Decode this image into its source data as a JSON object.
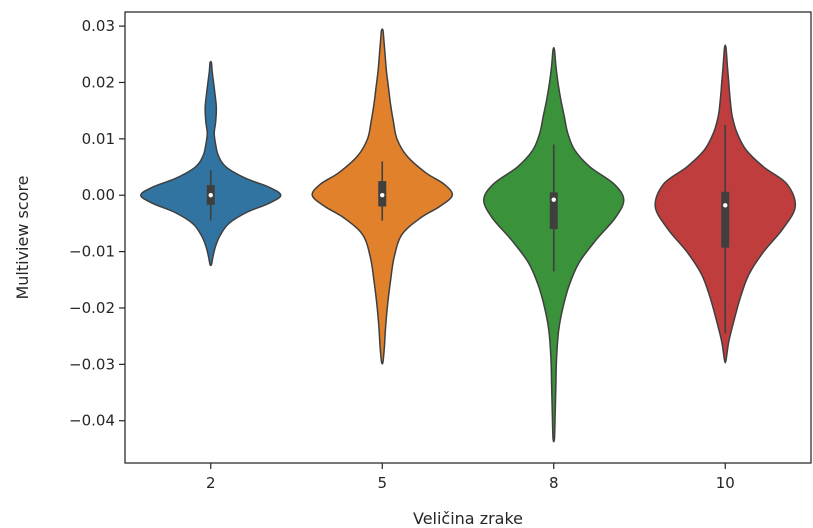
{
  "chart_data": {
    "type": "violin",
    "xlabel": "Veličina zrake",
    "ylabel": "Multiview score",
    "categories": [
      "2",
      "5",
      "8",
      "10"
    ],
    "colors": [
      "#3274a1",
      "#e1812c",
      "#3a923a",
      "#c03d3e"
    ],
    "ylim": [
      -0.0475,
      0.0325
    ],
    "yticks": [
      0.03,
      0.02,
      0.01,
      0.0,
      -0.01,
      -0.02,
      -0.03,
      -0.04
    ],
    "ytick_labels": [
      "0.03",
      "0.02",
      "0.01",
      "0.00",
      "−0.01",
      "−0.02",
      "−0.03",
      "−0.04"
    ],
    "grid": false,
    "violins": [
      {
        "category": "2",
        "min": -0.0123,
        "max": 0.0235,
        "q1": -0.0017,
        "median": 0.0,
        "q3": 0.0018,
        "whisker_low": -0.0045,
        "whisker_high": 0.0045,
        "profile": [
          [
            -0.0123,
            0.01
          ],
          [
            -0.011,
            0.03
          ],
          [
            -0.009,
            0.07
          ],
          [
            -0.007,
            0.14
          ],
          [
            -0.005,
            0.26
          ],
          [
            -0.003,
            0.52
          ],
          [
            -0.0015,
            0.82
          ],
          [
            0.0,
            1.0
          ],
          [
            0.0015,
            0.82
          ],
          [
            0.003,
            0.5
          ],
          [
            0.005,
            0.22
          ],
          [
            0.007,
            0.11
          ],
          [
            0.009,
            0.07
          ],
          [
            0.011,
            0.05
          ],
          [
            0.013,
            0.07
          ],
          [
            0.0155,
            0.08
          ],
          [
            0.018,
            0.06
          ],
          [
            0.02,
            0.04
          ],
          [
            0.022,
            0.02
          ],
          [
            0.0235,
            0.01
          ]
        ]
      },
      {
        "category": "5",
        "min": -0.0296,
        "max": 0.0293,
        "q1": -0.002,
        "median": 0.0,
        "q3": 0.0025,
        "whisker_low": -0.0045,
        "whisker_high": 0.006,
        "profile": [
          [
            -0.0296,
            0.01
          ],
          [
            -0.027,
            0.03
          ],
          [
            -0.023,
            0.05
          ],
          [
            -0.019,
            0.08
          ],
          [
            -0.015,
            0.12
          ],
          [
            -0.011,
            0.17
          ],
          [
            -0.007,
            0.28
          ],
          [
            -0.004,
            0.55
          ],
          [
            -0.002,
            0.82
          ],
          [
            0.0,
            1.0
          ],
          [
            0.002,
            0.88
          ],
          [
            0.004,
            0.62
          ],
          [
            0.007,
            0.35
          ],
          [
            0.01,
            0.21
          ],
          [
            0.013,
            0.16
          ],
          [
            0.016,
            0.12
          ],
          [
            0.019,
            0.09
          ],
          [
            0.022,
            0.06
          ],
          [
            0.025,
            0.04
          ],
          [
            0.028,
            0.02
          ],
          [
            0.0293,
            0.01
          ]
        ]
      },
      {
        "category": "8",
        "min": -0.0432,
        "max": 0.0258,
        "q1": -0.006,
        "median": -0.0008,
        "q3": 0.0005,
        "whisker_low": -0.0135,
        "whisker_high": 0.009,
        "profile": [
          [
            -0.0432,
            0.01
          ],
          [
            -0.039,
            0.02
          ],
          [
            -0.034,
            0.03
          ],
          [
            -0.029,
            0.04
          ],
          [
            -0.024,
            0.07
          ],
          [
            -0.02,
            0.13
          ],
          [
            -0.016,
            0.22
          ],
          [
            -0.012,
            0.36
          ],
          [
            -0.008,
            0.6
          ],
          [
            -0.004,
            0.88
          ],
          [
            -0.0008,
            1.0
          ],
          [
            0.002,
            0.86
          ],
          [
            0.005,
            0.52
          ],
          [
            0.008,
            0.3
          ],
          [
            0.011,
            0.2
          ],
          [
            0.014,
            0.15
          ],
          [
            0.017,
            0.1
          ],
          [
            0.02,
            0.06
          ],
          [
            0.023,
            0.03
          ],
          [
            0.0258,
            0.01
          ]
        ]
      },
      {
        "category": "10",
        "min": -0.0293,
        "max": 0.0262,
        "q1": -0.0093,
        "median": -0.0018,
        "q3": 0.0006,
        "whisker_low": -0.0245,
        "whisker_high": 0.0125,
        "profile": [
          [
            -0.0293,
            0.01
          ],
          [
            -0.026,
            0.05
          ],
          [
            -0.022,
            0.13
          ],
          [
            -0.018,
            0.22
          ],
          [
            -0.014,
            0.34
          ],
          [
            -0.01,
            0.55
          ],
          [
            -0.006,
            0.82
          ],
          [
            -0.002,
            1.0
          ],
          [
            0.002,
            0.88
          ],
          [
            0.005,
            0.55
          ],
          [
            0.008,
            0.3
          ],
          [
            0.011,
            0.17
          ],
          [
            0.014,
            0.1
          ],
          [
            0.017,
            0.07
          ],
          [
            0.02,
            0.05
          ],
          [
            0.023,
            0.03
          ],
          [
            0.0262,
            0.01
          ]
        ]
      }
    ]
  }
}
